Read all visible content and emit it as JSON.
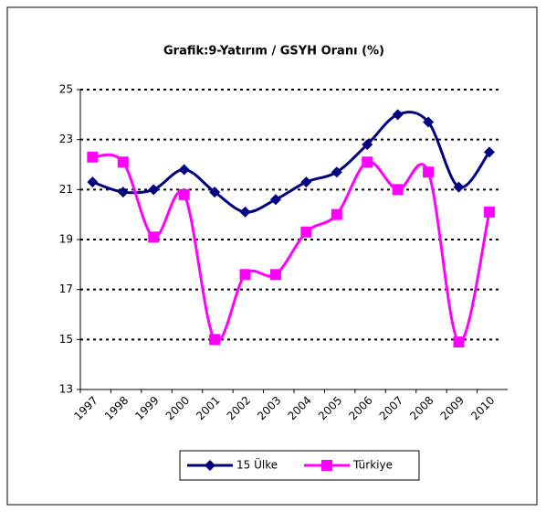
{
  "chart_data": {
    "type": "line",
    "title": "Grafik:9-Yatırım / GSYH Oranı (%)",
    "categories": [
      "1997",
      "1998",
      "1999",
      "2000",
      "2001",
      "2002",
      "2003",
      "2004",
      "2005",
      "2006",
      "2007",
      "2008",
      "2009",
      "2010"
    ],
    "series": [
      {
        "name": "15 Ülke",
        "color": "#000080",
        "values": [
          21.3,
          20.9,
          21.0,
          21.8,
          20.9,
          20.1,
          20.6,
          21.3,
          21.7,
          22.8,
          24.0,
          23.7,
          21.1,
          22.5
        ]
      },
      {
        "name": "Türkiye",
        "color": "#ff00ff",
        "values": [
          22.3,
          22.1,
          19.1,
          20.8,
          15.0,
          17.6,
          17.6,
          19.3,
          20.0,
          22.1,
          21.0,
          21.7,
          14.9,
          20.1
        ]
      }
    ],
    "ylim": [
      13,
      25
    ],
    "yticks": [
      13,
      15,
      17,
      19,
      21,
      23,
      25
    ],
    "grid": true,
    "legend": "bottom"
  }
}
